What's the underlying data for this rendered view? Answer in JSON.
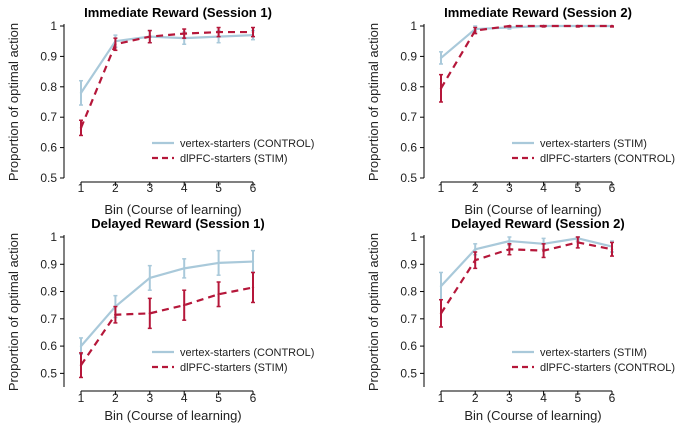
{
  "chart_data": [
    {
      "type": "line",
      "title": "Immediate Reward (Session 1)",
      "xlabel": "Bin (Course of learning)",
      "ylabel": "Proportion of optimal action",
      "x": [
        1,
        2,
        3,
        4,
        5,
        6
      ],
      "xticks": [
        "1",
        "2",
        "3",
        "4",
        "5",
        "6"
      ],
      "ylim": [
        0.5,
        1.0
      ],
      "yticks": [
        "0.5",
        "0.6",
        "0.7",
        "0.8",
        "0.9",
        "1"
      ],
      "legend_position": "bottom-right",
      "series": [
        {
          "name": "vertex-starters (CONTROL)",
          "style": "solid",
          "color": "#a9c9da",
          "values": [
            0.78,
            0.95,
            0.965,
            0.96,
            0.965,
            0.97
          ],
          "errors": [
            0.04,
            0.02,
            0.02,
            0.02,
            0.02,
            0.015
          ]
        },
        {
          "name": "dlPFC-starters (STIM)",
          "style": "dashed",
          "color": "#b5173a",
          "values": [
            0.665,
            0.94,
            0.965,
            0.975,
            0.98,
            0.98
          ],
          "errors": [
            0.025,
            0.02,
            0.02,
            0.015,
            0.015,
            0.015
          ]
        }
      ]
    },
    {
      "type": "line",
      "title": "Immediate Reward (Session 2)",
      "xlabel": "Bin (Course of learning)",
      "ylabel": "Proportion of optimal action",
      "x": [
        1,
        2,
        3,
        4,
        5,
        6
      ],
      "xticks": [
        "1",
        "2",
        "3",
        "4",
        "5",
        "6"
      ],
      "ylim": [
        0.5,
        1.0
      ],
      "yticks": [
        "0.5",
        "0.6",
        "0.7",
        "0.8",
        "0.9",
        "1"
      ],
      "legend_position": "bottom-right",
      "series": [
        {
          "name": "vertex-starters (STIM)",
          "style": "solid",
          "color": "#a9c9da",
          "values": [
            0.895,
            0.99,
            0.995,
            1.0,
            1.0,
            1.0
          ],
          "errors": [
            0.02,
            0.01,
            0.005,
            0.003,
            0.003,
            0.003
          ]
        },
        {
          "name": "dlPFC-starters (CONTROL)",
          "style": "dashed",
          "color": "#b5173a",
          "values": [
            0.795,
            0.985,
            1.0,
            1.0,
            1.0,
            1.0
          ],
          "errors": [
            0.045,
            0.01,
            0.003,
            0.003,
            0.003,
            0.003
          ]
        }
      ]
    },
    {
      "type": "line",
      "title": "Delayed Reward (Session 1)",
      "xlabel": "Bin (Course of learning)",
      "ylabel": "Proportion of optimal action",
      "x": [
        1,
        2,
        3,
        4,
        5,
        6
      ],
      "xticks": [
        "1",
        "2",
        "3",
        "4",
        "5",
        "6"
      ],
      "ylim": [
        0.45,
        1.0
      ],
      "yticks": [
        "0.5",
        "0.6",
        "0.7",
        "0.8",
        "0.9",
        "1"
      ],
      "legend_position": "bottom-right",
      "series": [
        {
          "name": "vertex-starters (CONTROL)",
          "style": "solid",
          "color": "#a9c9da",
          "values": [
            0.6,
            0.745,
            0.85,
            0.885,
            0.905,
            0.91
          ],
          "errors": [
            0.03,
            0.04,
            0.045,
            0.035,
            0.045,
            0.04
          ]
        },
        {
          "name": "dlPFC-starters (STIM)",
          "style": "dashed",
          "color": "#b5173a",
          "values": [
            0.53,
            0.715,
            0.72,
            0.75,
            0.79,
            0.815
          ],
          "errors": [
            0.045,
            0.03,
            0.055,
            0.055,
            0.045,
            0.055
          ]
        }
      ]
    },
    {
      "type": "line",
      "title": "Delayed Reward (Session 2)",
      "xlabel": "Bin (Course of learning)",
      "ylabel": "Proportion of optimal action",
      "x": [
        1,
        2,
        3,
        4,
        5,
        6
      ],
      "xticks": [
        "1",
        "2",
        "3",
        "4",
        "5",
        "6"
      ],
      "ylim": [
        0.45,
        1.0
      ],
      "yticks": [
        "0.5",
        "0.6",
        "0.7",
        "0.8",
        "0.9",
        "1"
      ],
      "legend_position": "bottom-right",
      "series": [
        {
          "name": "vertex-starters (STIM)",
          "style": "solid",
          "color": "#a9c9da",
          "values": [
            0.82,
            0.955,
            0.985,
            0.975,
            0.995,
            0.965
          ],
          "errors": [
            0.05,
            0.02,
            0.015,
            0.02,
            0.01,
            0.02
          ]
        },
        {
          "name": "dlPFC-starters (CONTROL)",
          "style": "dashed",
          "color": "#b5173a",
          "values": [
            0.72,
            0.915,
            0.955,
            0.95,
            0.98,
            0.955
          ],
          "errors": [
            0.05,
            0.03,
            0.02,
            0.025,
            0.02,
            0.025
          ]
        }
      ]
    }
  ]
}
